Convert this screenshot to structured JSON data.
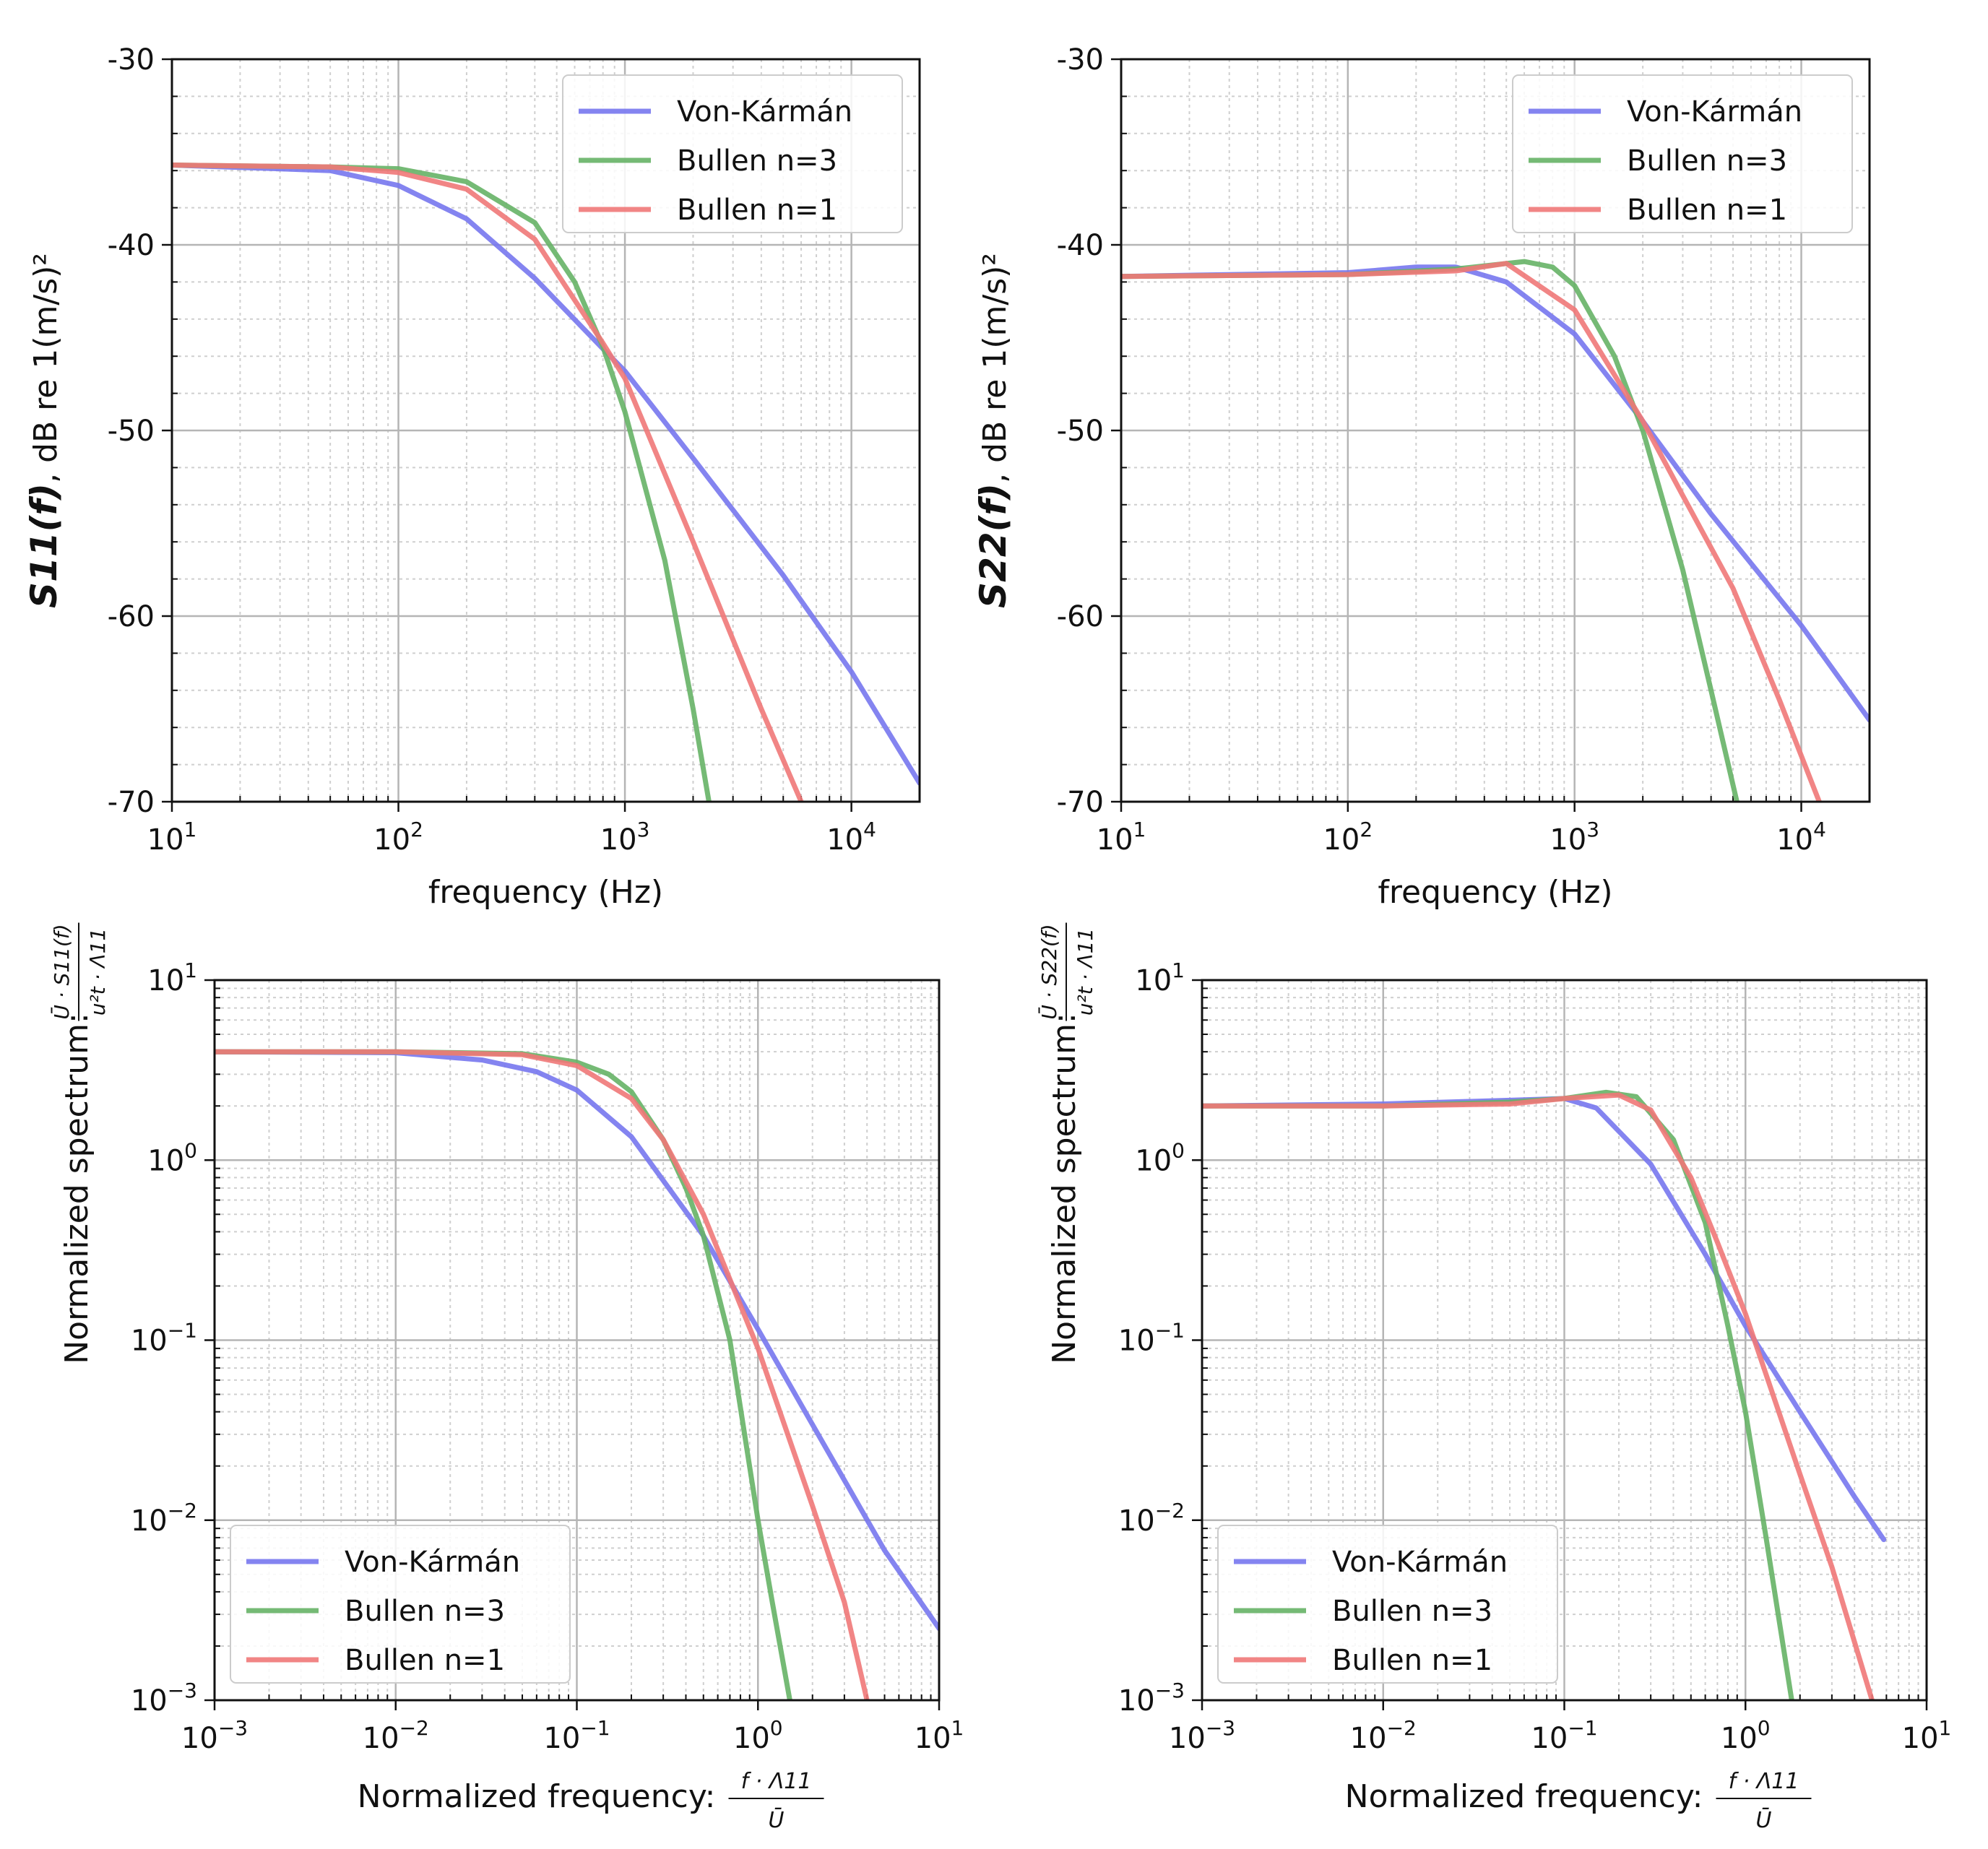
{
  "chart_data": [
    {
      "type": "line",
      "panel": "top-left",
      "xscale": "log",
      "yscale": "linear",
      "xlim": [
        10,
        20000
      ],
      "ylim": [
        -70,
        -30
      ],
      "xlabel": "frequency (Hz)",
      "ylabel_main": "S11(f)",
      "ylabel_unit": ", dB re 1(m/s)²",
      "xticks": [
        {
          "base": "10",
          "exp": "1",
          "value": 10
        },
        {
          "base": "10",
          "exp": "2",
          "value": 100
        },
        {
          "base": "10",
          "exp": "3",
          "value": 1000
        },
        {
          "base": "10",
          "exp": "4",
          "value": 10000
        }
      ],
      "yticks": [
        {
          "label": "-30",
          "value": -30
        },
        {
          "label": "-40",
          "value": -40
        },
        {
          "label": "-50",
          "value": -50
        },
        {
          "label": "-60",
          "value": -60
        },
        {
          "label": "-70",
          "value": -70
        }
      ],
      "legend_position": "top-right",
      "series": [
        {
          "name": "Von-Kármán",
          "color": "#7777ee",
          "x": [
            10,
            50,
            100,
            200,
            400,
            800,
            1000,
            2000,
            5000,
            10000,
            20000
          ],
          "y": [
            -35.7,
            -36.0,
            -36.8,
            -38.6,
            -41.8,
            -45.6,
            -46.8,
            -51.5,
            -57.8,
            -63.0,
            -69.0
          ]
        },
        {
          "name": "Bullen n=3",
          "color": "#66b366",
          "x": [
            10,
            50,
            100,
            200,
            400,
            600,
            800,
            1000,
            1500,
            2000,
            2350
          ],
          "y": [
            -35.7,
            -35.8,
            -35.9,
            -36.6,
            -38.8,
            -42.0,
            -45.5,
            -49.0,
            -57.0,
            -65.0,
            -70.0
          ]
        },
        {
          "name": "Bullen n=1",
          "color": "#f07878",
          "x": [
            10,
            50,
            100,
            200,
            400,
            800,
            1000,
            2000,
            4000,
            6000
          ],
          "y": [
            -35.7,
            -35.8,
            -36.1,
            -37.0,
            -39.7,
            -45.3,
            -47.2,
            -56.0,
            -65.0,
            -70.0
          ]
        }
      ]
    },
    {
      "type": "line",
      "panel": "top-right",
      "xscale": "log",
      "yscale": "linear",
      "xlim": [
        10,
        20000
      ],
      "ylim": [
        -70,
        -30
      ],
      "xlabel": "frequency (Hz)",
      "ylabel_main": "S22(f)",
      "ylabel_unit": ", dB re 1(m/s)²",
      "xticks": [
        {
          "base": "10",
          "exp": "1",
          "value": 10
        },
        {
          "base": "10",
          "exp": "2",
          "value": 100
        },
        {
          "base": "10",
          "exp": "3",
          "value": 1000
        },
        {
          "base": "10",
          "exp": "4",
          "value": 10000
        }
      ],
      "yticks": [
        {
          "label": "-30",
          "value": -30
        },
        {
          "label": "-40",
          "value": -40
        },
        {
          "label": "-50",
          "value": -50
        },
        {
          "label": "-60",
          "value": -60
        },
        {
          "label": "-70",
          "value": -70
        }
      ],
      "legend_position": "top-right",
      "series": [
        {
          "name": "Von-Kármán",
          "color": "#7777ee",
          "x": [
            10,
            100,
            200,
            300,
            500,
            1000,
            2000,
            4000,
            10000,
            20000
          ],
          "y": [
            -41.7,
            -41.5,
            -41.2,
            -41.2,
            -42.0,
            -44.8,
            -49.5,
            -54.5,
            -60.5,
            -65.6
          ]
        },
        {
          "name": "Bullen n=3",
          "color": "#66b366",
          "x": [
            10,
            100,
            300,
            600,
            800,
            1000,
            1500,
            2000,
            3000,
            4000,
            5200
          ],
          "y": [
            -41.7,
            -41.6,
            -41.3,
            -40.9,
            -41.2,
            -42.2,
            -46.0,
            -50.0,
            -57.5,
            -64.0,
            -70.0
          ]
        },
        {
          "name": "Bullen n=1",
          "color": "#f07878",
          "x": [
            10,
            100,
            300,
            500,
            1000,
            2000,
            3000,
            5000,
            8000,
            12000
          ],
          "y": [
            -41.7,
            -41.6,
            -41.4,
            -41.0,
            -43.5,
            -49.5,
            -53.5,
            -58.5,
            -64.5,
            -70.0
          ]
        }
      ]
    },
    {
      "type": "line",
      "panel": "bottom-left",
      "xscale": "log",
      "yscale": "log",
      "xlim": [
        0.001,
        10
      ],
      "ylim": [
        0.001,
        10
      ],
      "xlabel_text": "Normalized frequency:",
      "xlabel_num": "f · Λ11",
      "xlabel_den": "Ū",
      "ylabel_text": "Normalized spectrum:",
      "ylabel_num": "Ū · S11(f)",
      "ylabel_den": "u²t · Λ11",
      "xticks": [
        {
          "base": "10",
          "exp": "−3",
          "value": 0.001
        },
        {
          "base": "10",
          "exp": "−2",
          "value": 0.01
        },
        {
          "base": "10",
          "exp": "−1",
          "value": 0.1
        },
        {
          "base": "10",
          "exp": "0",
          "value": 1
        },
        {
          "base": "10",
          "exp": "1",
          "value": 10
        }
      ],
      "yticks": [
        {
          "base": "10",
          "exp": "−3",
          "value": 0.001
        },
        {
          "base": "10",
          "exp": "−2",
          "value": 0.01
        },
        {
          "base": "10",
          "exp": "−1",
          "value": 0.1
        },
        {
          "base": "10",
          "exp": "0",
          "value": 1
        },
        {
          "base": "10",
          "exp": "1",
          "value": 10
        }
      ],
      "legend_position": "lower-left",
      "series": [
        {
          "name": "Von-Kármán",
          "color": "#7777ee",
          "x": [
            0.001,
            0.01,
            0.03,
            0.06,
            0.1,
            0.2,
            0.5,
            1,
            2,
            5,
            10
          ],
          "y": [
            4.0,
            3.95,
            3.6,
            3.1,
            2.45,
            1.35,
            0.38,
            0.115,
            0.034,
            0.0068,
            0.0025
          ]
        },
        {
          "name": "Bullen n=3",
          "color": "#66b366",
          "x": [
            0.001,
            0.01,
            0.05,
            0.1,
            0.15,
            0.2,
            0.3,
            0.4,
            0.5,
            0.7,
            1.0,
            1.2,
            1.5
          ],
          "y": [
            4.0,
            4.0,
            3.9,
            3.5,
            3.0,
            2.4,
            1.3,
            0.7,
            0.38,
            0.1,
            0.01,
            0.0035,
            0.001
          ]
        },
        {
          "name": "Bullen n=1",
          "color": "#f07878",
          "x": [
            0.001,
            0.01,
            0.05,
            0.1,
            0.2,
            0.3,
            0.5,
            1.0,
            2.0,
            3.0,
            4.0
          ],
          "y": [
            4.0,
            4.0,
            3.85,
            3.35,
            2.2,
            1.3,
            0.5,
            0.09,
            0.012,
            0.0035,
            0.001
          ]
        }
      ]
    },
    {
      "type": "line",
      "panel": "bottom-right",
      "xscale": "log",
      "yscale": "log",
      "xlim": [
        0.001,
        10
      ],
      "ylim": [
        0.001,
        10
      ],
      "xlabel_text": "Normalized frequency:",
      "xlabel_num": "f · Λ11",
      "xlabel_den": "Ū",
      "ylabel_text": "Normalized spectrum:",
      "ylabel_num": "Ū · S22(f)",
      "ylabel_den": "u²t · Λ11",
      "xticks": [
        {
          "base": "10",
          "exp": "−3",
          "value": 0.001
        },
        {
          "base": "10",
          "exp": "−2",
          "value": 0.01
        },
        {
          "base": "10",
          "exp": "−1",
          "value": 0.1
        },
        {
          "base": "10",
          "exp": "0",
          "value": 1
        },
        {
          "base": "10",
          "exp": "1",
          "value": 10
        }
      ],
      "yticks": [
        {
          "base": "10",
          "exp": "−3",
          "value": 0.001
        },
        {
          "base": "10",
          "exp": "−2",
          "value": 0.01
        },
        {
          "base": "10",
          "exp": "−1",
          "value": 0.1
        },
        {
          "base": "10",
          "exp": "0",
          "value": 1
        },
        {
          "base": "10",
          "exp": "1",
          "value": 10
        }
      ],
      "legend_position": "lower-left",
      "series": [
        {
          "name": "Von-Kármán",
          "color": "#7777ee",
          "x": [
            0.001,
            0.01,
            0.05,
            0.1,
            0.15,
            0.3,
            0.6,
            1.0,
            2.0,
            4.0,
            5.8
          ],
          "y": [
            2.0,
            2.05,
            2.15,
            2.2,
            1.95,
            0.95,
            0.3,
            0.12,
            0.04,
            0.0135,
            0.0078
          ]
        },
        {
          "name": "Bullen n=3",
          "color": "#66b366",
          "x": [
            0.001,
            0.01,
            0.05,
            0.1,
            0.17,
            0.25,
            0.4,
            0.6,
            0.8,
            1.0,
            1.3,
            1.8
          ],
          "y": [
            2.0,
            2.0,
            2.1,
            2.2,
            2.38,
            2.25,
            1.3,
            0.45,
            0.12,
            0.04,
            0.008,
            0.001
          ]
        },
        {
          "name": "Bullen n=1",
          "color": "#f07878",
          "x": [
            0.001,
            0.01,
            0.05,
            0.1,
            0.2,
            0.3,
            0.5,
            0.7,
            1.0,
            2.0,
            3.0,
            5.0
          ],
          "y": [
            2.0,
            2.0,
            2.05,
            2.2,
            2.3,
            1.9,
            0.8,
            0.35,
            0.14,
            0.018,
            0.0055,
            0.001
          ]
        }
      ]
    }
  ]
}
